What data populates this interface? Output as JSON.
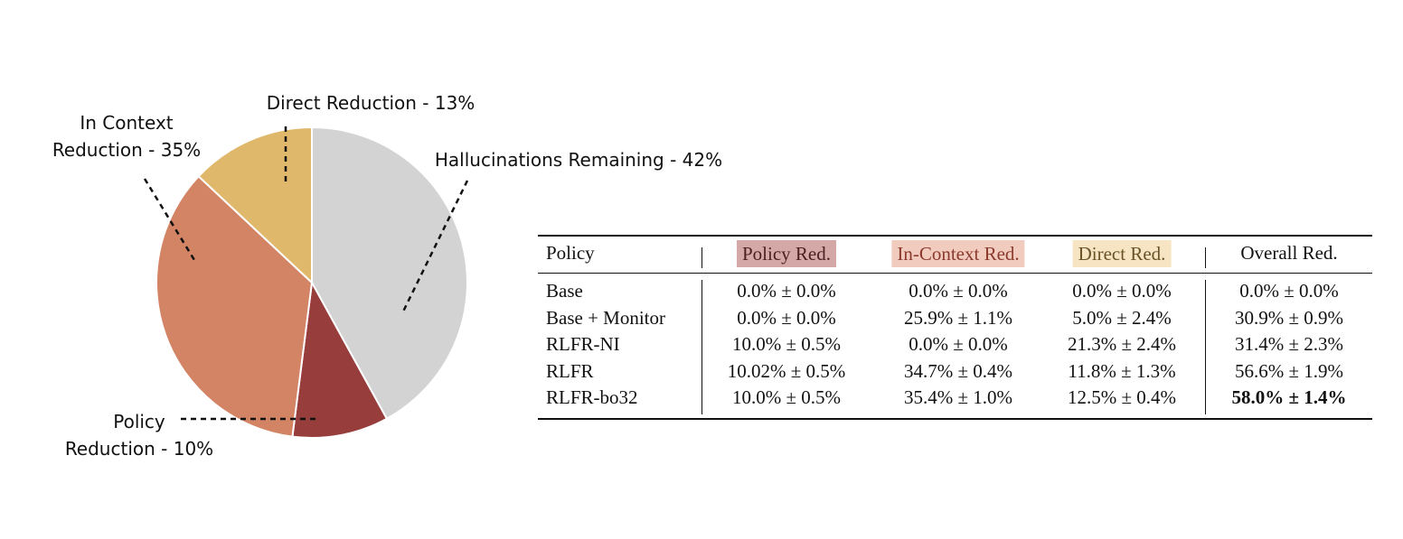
{
  "chart_data": {
    "type": "pie",
    "categories": [
      "Hallucinations Remaining - 42%",
      "Policy\nReduction - 10%",
      "In Context\nReduction - 35%",
      "Direct Reduction - 13%"
    ],
    "values": [
      42,
      10,
      35,
      13
    ],
    "colors": [
      "#d3d3d3",
      "#973d3c",
      "#d38465",
      "#e0b86c"
    ]
  },
  "table": {
    "header": [
      "Policy",
      "Policy Red.",
      "In-Context Red.",
      "Direct Red.",
      "Overall Red."
    ],
    "rows": [
      [
        "Base",
        "0.0% ± 0.0%",
        "0.0% ± 0.0%",
        "0.0% ± 0.0%",
        "0.0% ± 0.0%"
      ],
      [
        "Base + Monitor",
        "0.0% ± 0.0%",
        "25.9% ± 1.1%",
        "5.0% ± 2.4%",
        "30.9% ± 0.9%"
      ],
      [
        "RLFR-NI",
        "10.0% ± 0.5%",
        "0.0% ± 0.0%",
        "21.3% ± 2.4%",
        "31.4% ± 2.3%"
      ],
      [
        "RLFR",
        "10.02% ± 0.5%",
        "34.7% ± 0.4%",
        "11.8% ± 1.3%",
        "56.6% ± 1.9%"
      ],
      [
        "RLFR-bo32",
        "10.0% ± 0.5%",
        "35.4% ± 1.0%",
        "12.5% ± 0.4%",
        "58.0% ± 1.4%"
      ]
    ]
  }
}
